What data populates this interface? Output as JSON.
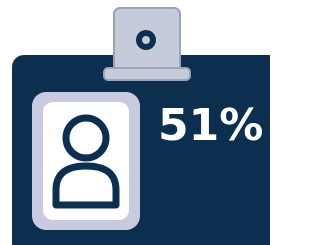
{
  "badge": {
    "label": "51%"
  }
}
